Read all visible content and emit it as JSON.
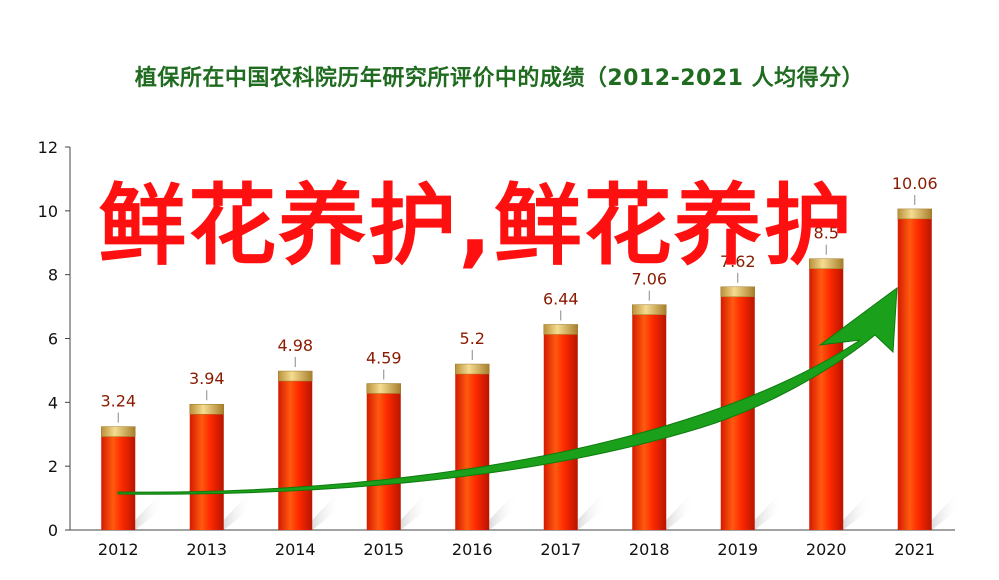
{
  "chart_data": {
    "type": "bar",
    "title": "植保所在中国农科院历年研究所评价中的成绩（2012-2021 人均得分）",
    "categories": [
      "2012",
      "2013",
      "2014",
      "2015",
      "2016",
      "2017",
      "2018",
      "2019",
      "2020",
      "2021"
    ],
    "values": [
      3.24,
      3.94,
      4.98,
      4.59,
      5.2,
      6.44,
      7.06,
      7.62,
      8.5,
      10.06
    ],
    "value_labels": [
      "3.24",
      "3.94",
      "4.98",
      "4.59",
      "5.2",
      "6.44",
      "7.06",
      "7.62",
      "8.5",
      "10.06"
    ],
    "ylim": [
      0,
      12
    ],
    "yticks": [
      0,
      2,
      4,
      6,
      8,
      10,
      12
    ],
    "xlabel": "",
    "ylabel": "",
    "grid": false,
    "colors": {
      "bar": "#ff3300",
      "bar_cap": "#e8c870",
      "title": "#1f6b1f",
      "trend_arrow": "#1aa01a",
      "overlay_text": "#ff1010"
    }
  },
  "overlay": {
    "text": "鲜花养护,鲜花养护"
  }
}
